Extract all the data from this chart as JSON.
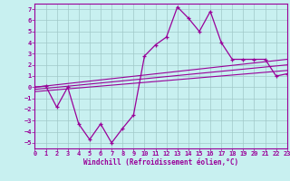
{
  "xlabel": "Windchill (Refroidissement éolien,°C)",
  "xlim": [
    0,
    23
  ],
  "ylim": [
    -5.5,
    7.5
  ],
  "yticks": [
    -5,
    -4,
    -3,
    -2,
    -1,
    0,
    1,
    2,
    3,
    4,
    5,
    6,
    7
  ],
  "xticks": [
    0,
    1,
    2,
    3,
    4,
    5,
    6,
    7,
    8,
    9,
    10,
    11,
    12,
    13,
    14,
    15,
    16,
    17,
    18,
    19,
    20,
    21,
    22,
    23
  ],
  "background_color": "#c8f0f0",
  "grid_color": "#a0c8c8",
  "line_color": "#990099",
  "curve1_x": [
    0,
    1,
    2,
    3,
    4,
    5,
    6,
    7,
    8,
    9,
    10,
    11,
    12,
    13,
    14,
    15,
    16,
    17,
    18,
    19,
    20,
    21,
    22,
    23
  ],
  "curve1_y": [
    0.0,
    0.1,
    -1.8,
    0.0,
    -3.3,
    -4.7,
    -3.3,
    -5.0,
    -3.7,
    -2.5,
    2.8,
    3.8,
    4.5,
    7.2,
    6.2,
    5.0,
    6.8,
    4.0,
    2.5,
    2.5,
    2.5,
    2.5,
    1.0,
    1.2
  ],
  "line2_x": [
    0,
    23
  ],
  "line2_y": [
    0.0,
    2.5
  ],
  "line3_x": [
    0,
    23
  ],
  "line3_y": [
    -0.2,
    2.0
  ],
  "line4_x": [
    0,
    23
  ],
  "line4_y": [
    -0.4,
    1.5
  ]
}
